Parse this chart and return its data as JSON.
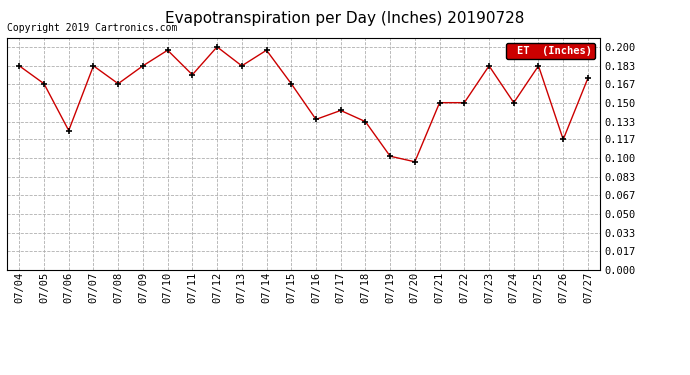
{
  "title": "Evapotranspiration per Day (Inches) 20190728",
  "copyright_text": "Copyright 2019 Cartronics.com",
  "legend_label": "ET  (Inches)",
  "legend_bg": "#cc0000",
  "legend_text_color": "#ffffff",
  "dates": [
    "07/04",
    "07/05",
    "07/06",
    "07/07",
    "07/08",
    "07/09",
    "07/10",
    "07/11",
    "07/12",
    "07/13",
    "07/14",
    "07/15",
    "07/16",
    "07/17",
    "07/18",
    "07/19",
    "07/20",
    "07/21",
    "07/22",
    "07/23",
    "07/24",
    "07/25",
    "07/26",
    "07/27"
  ],
  "values": [
    0.183,
    0.167,
    0.125,
    0.183,
    0.167,
    0.183,
    0.197,
    0.175,
    0.2,
    0.183,
    0.197,
    0.167,
    0.135,
    0.143,
    0.133,
    0.102,
    0.097,
    0.15,
    0.15,
    0.183,
    0.15,
    0.183,
    0.117,
    0.172
  ],
  "line_color": "#cc0000",
  "marker_color": "#000000",
  "bg_color": "#ffffff",
  "plot_bg_color": "#ffffff",
  "grid_color": "#b0b0b0",
  "ylim": [
    0.0,
    0.2084
  ],
  "yticks": [
    0.0,
    0.017,
    0.033,
    0.05,
    0.067,
    0.083,
    0.1,
    0.117,
    0.133,
    0.15,
    0.167,
    0.183,
    0.2
  ],
  "title_fontsize": 11,
  "tick_fontsize": 7.5,
  "copyright_fontsize": 7
}
